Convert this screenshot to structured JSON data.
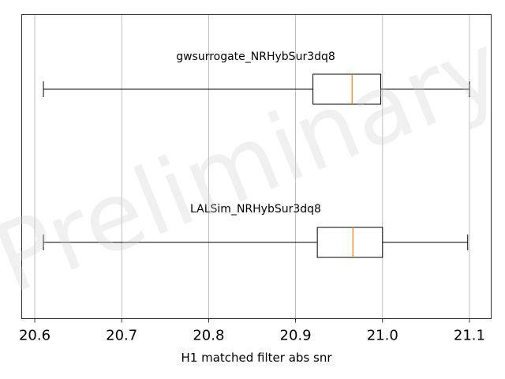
{
  "chart_data": {
    "type": "boxplot",
    "orientation": "horizontal",
    "xlabel": "H1 matched filter abs snr",
    "xlim": [
      20.585,
      21.125
    ],
    "xticks": [
      20.6,
      20.7,
      20.8,
      20.9,
      21.0,
      21.1
    ],
    "xtick_labels": [
      "20.6",
      "20.7",
      "20.8",
      "20.9",
      "21.0",
      "21.1"
    ],
    "grid": "vertical",
    "watermark": "Preliminary",
    "series": [
      {
        "name": "gwsurrogate_NRHybSur3dq8",
        "whisker_low": 20.61,
        "q1": 20.92,
        "median": 20.965,
        "q3": 20.998,
        "whisker_high": 21.1
      },
      {
        "name": "LALSim_NRHybSur3dq8",
        "whisker_low": 20.61,
        "q1": 20.925,
        "median": 20.966,
        "q3": 21.0,
        "whisker_high": 21.098
      }
    ],
    "colors": {
      "box": "#000000",
      "median": "#ff7f0e",
      "grid": "#b0b0b0"
    }
  }
}
